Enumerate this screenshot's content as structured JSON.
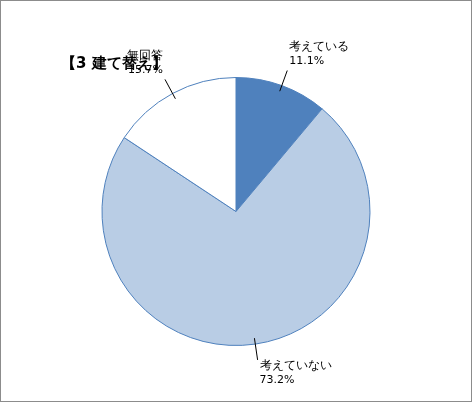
{
  "chart_data": {
    "type": "pie",
    "title": "【3 建て替え】",
    "categories": [
      "考えている",
      "考えていない",
      "無回答"
    ],
    "values": [
      11.1,
      73.2,
      15.7
    ],
    "value_labels": [
      "11.1%",
      "73.2%",
      "15.7%"
    ],
    "colors": [
      "#4f81bd",
      "#b9cde5",
      "#ffffff"
    ],
    "data_labels": true
  }
}
